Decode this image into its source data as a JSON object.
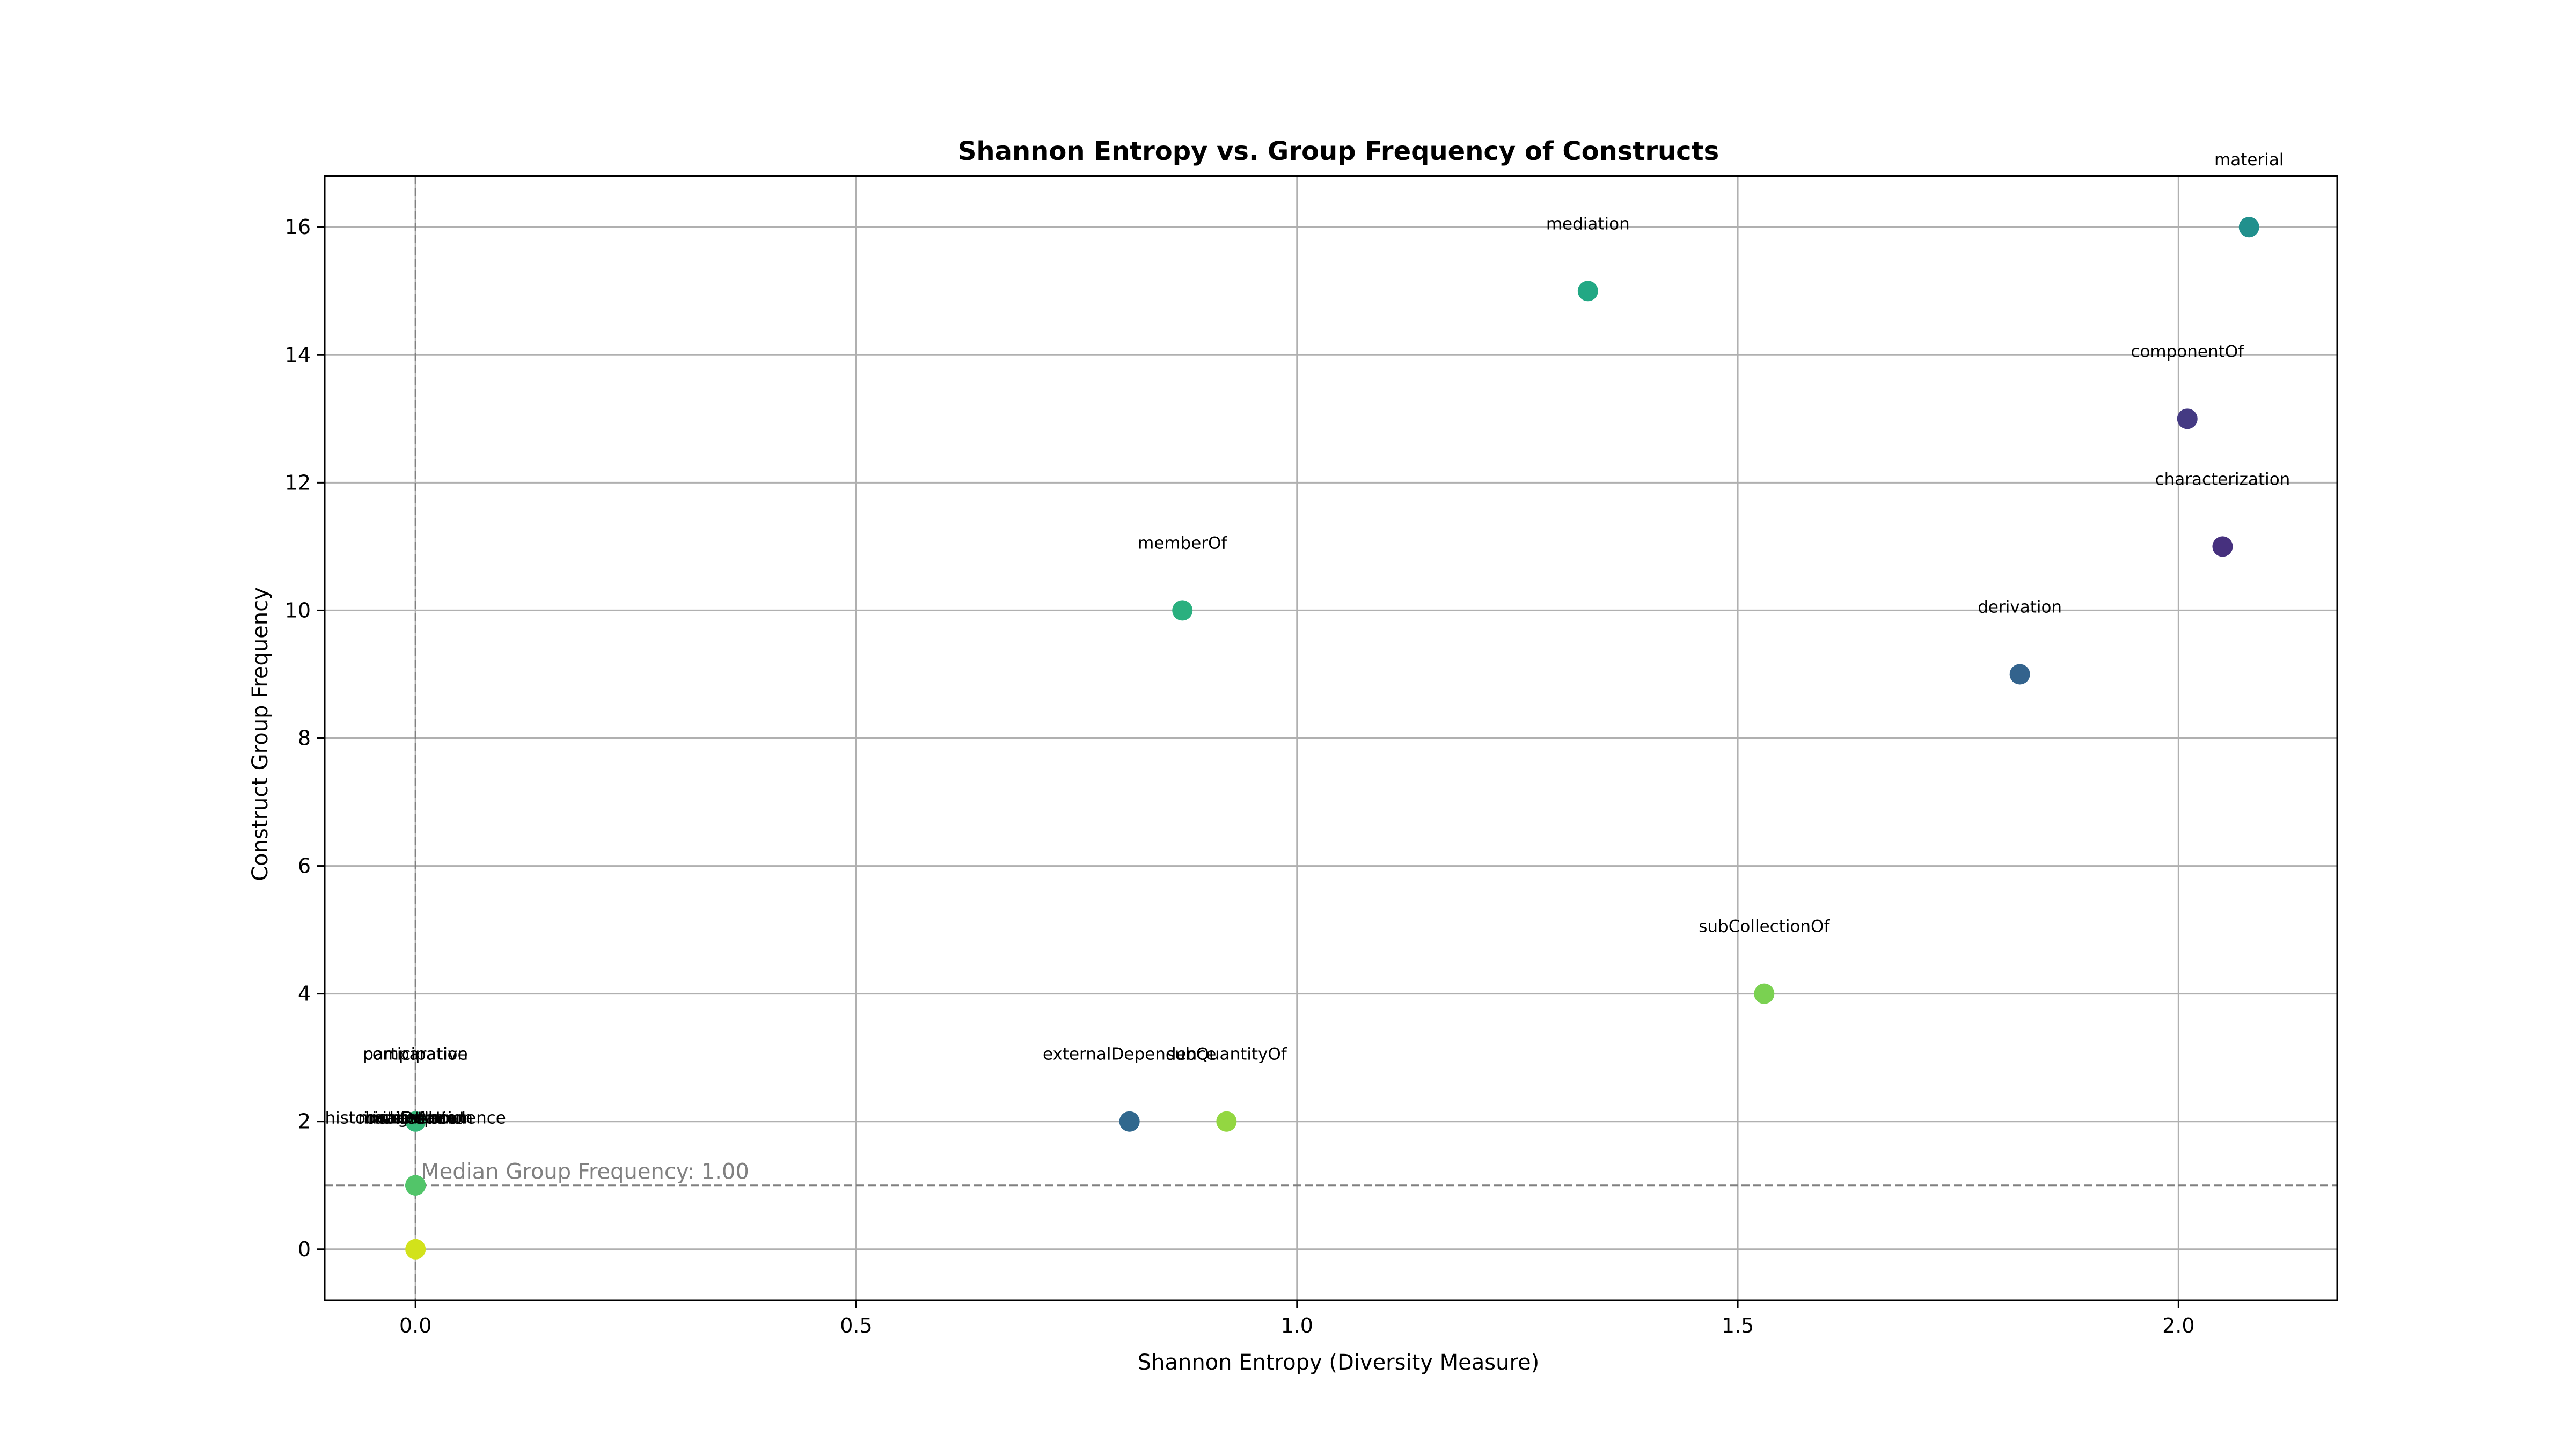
{
  "chart_data": {
    "type": "scatter",
    "title": "Shannon Entropy vs. Group Frequency of Constructs",
    "xlabel": "Shannon Entropy (Diversity Measure)",
    "ylabel": "Construct Group Frequency",
    "xlim": [
      -0.103,
      2.18
    ],
    "ylim": [
      -0.8,
      16.8
    ],
    "xticks": [
      0.0,
      0.5,
      1.0,
      1.5,
      2.0
    ],
    "xtick_labels": [
      "0.0",
      "0.5",
      "1.0",
      "1.5",
      "2.0"
    ],
    "yticks": [
      0,
      2,
      4,
      6,
      8,
      10,
      12,
      14,
      16
    ],
    "ytick_labels": [
      "0",
      "2",
      "4",
      "6",
      "8",
      "10",
      "12",
      "14",
      "16"
    ],
    "grid": true,
    "colormap": "viridis",
    "reference_lines": {
      "median_entropy_x": 0.0,
      "median_frequency_y": 1.0,
      "median_frequency_label": "Median Group Frequency: 1.00",
      "color": "#808080"
    },
    "points": [
      {
        "label": "material",
        "x": 2.08,
        "y": 16,
        "color": "#21908d"
      },
      {
        "label": "mediation",
        "x": 1.33,
        "y": 15,
        "color": "#22a884"
      },
      {
        "label": "componentOf",
        "x": 2.01,
        "y": 13,
        "color": "#443a83"
      },
      {
        "label": "characterization",
        "x": 2.05,
        "y": 11,
        "color": "#46307e"
      },
      {
        "label": "memberOf",
        "x": 0.87,
        "y": 10,
        "color": "#2ab07f"
      },
      {
        "label": "derivation",
        "x": 1.82,
        "y": 9,
        "color": "#33638d"
      },
      {
        "label": "subCollectionOf",
        "x": 1.53,
        "y": 4,
        "color": "#7ad151"
      },
      {
        "label": "externalDependence",
        "x": 0.81,
        "y": 2,
        "color": "#31688e"
      },
      {
        "label": "subQuantityOf",
        "x": 0.92,
        "y": 2,
        "color": "#93d741"
      },
      {
        "label": "participation",
        "x": 0.0,
        "y": 2,
        "color": "#3fbc73"
      },
      {
        "label": "comparative",
        "x": 0.0,
        "y": 2,
        "color": "#35b779"
      },
      {
        "label": "historicalDependence",
        "x": 0.0,
        "y": 1,
        "color": "#2fb47c"
      },
      {
        "label": "inherence",
        "x": 0.0,
        "y": 1,
        "color": "#3aba76"
      },
      {
        "label": "bringsAbout",
        "x": 0.0,
        "y": 1,
        "color": "#4ec36b"
      },
      {
        "label": "creation",
        "x": 0.0,
        "y": 1,
        "color": "#42be71"
      },
      {
        "label": "manifestation",
        "x": 0.0,
        "y": 1,
        "color": "#3cbb75"
      },
      {
        "label": "instantiation",
        "x": 0.0,
        "y": 1,
        "color": "#52c569"
      },
      {
        "label": "",
        "x": 0.0,
        "y": 0,
        "color": "#d2e21b"
      }
    ]
  }
}
